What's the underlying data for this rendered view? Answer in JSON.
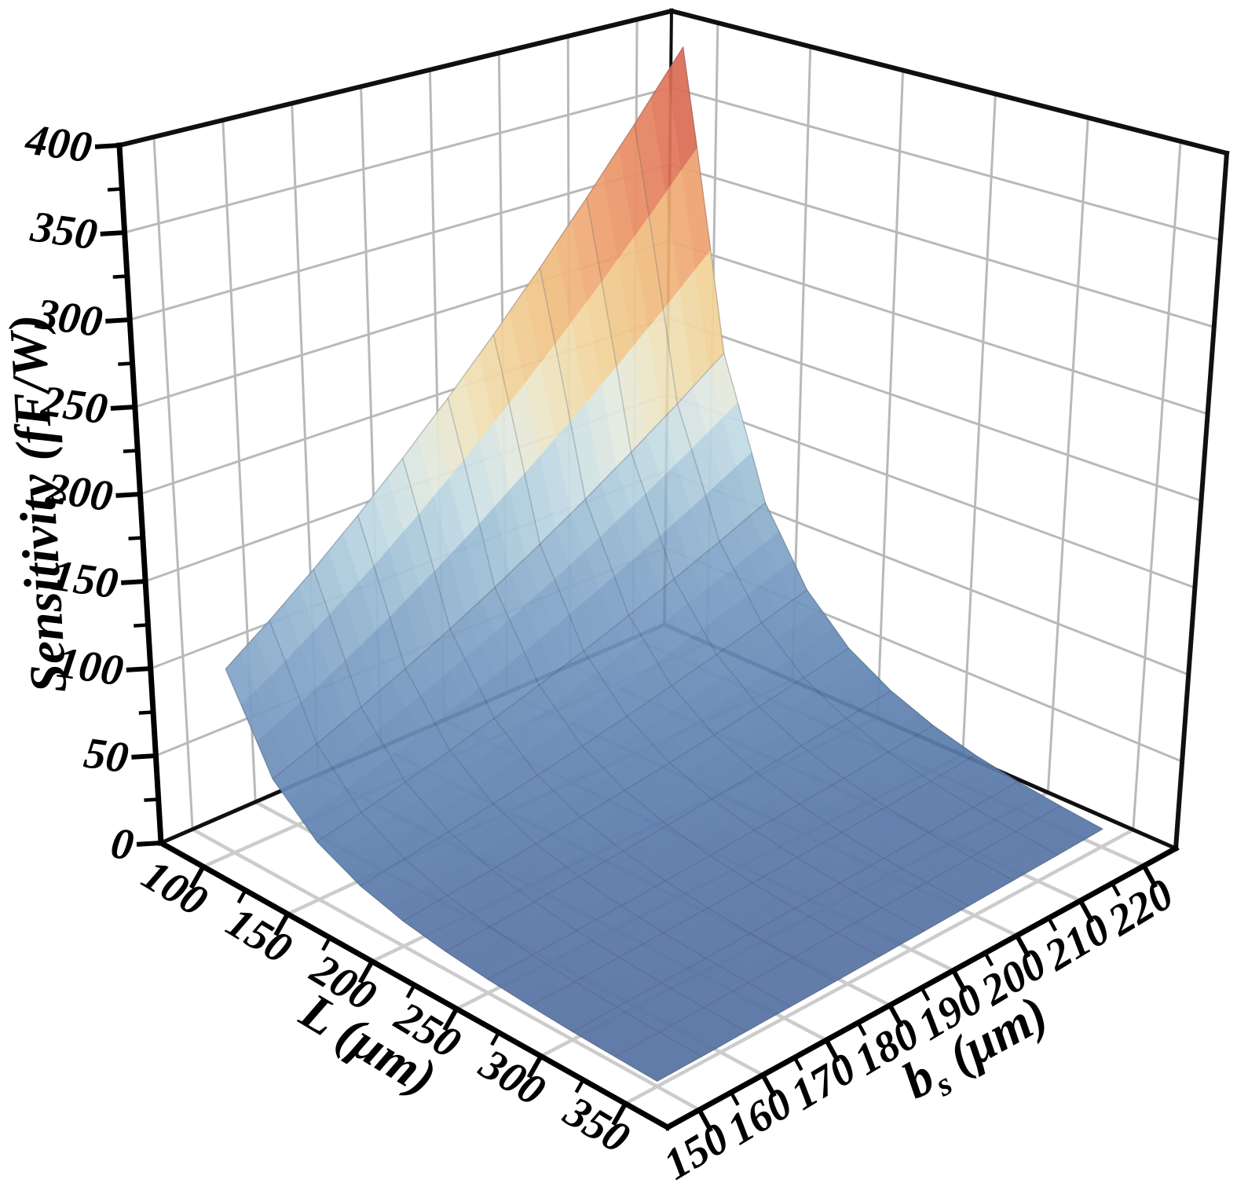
{
  "figure": {
    "background": "#ffffff",
    "axis_color": "#000000",
    "wall_grid_color": "#b9b9b9",
    "floor_grid_color": "#cccccc"
  },
  "chart_data": {
    "type": "surface",
    "title": "",
    "xlabel": "L (μm)",
    "ylabel": "bₛ (μm)",
    "ylabel_parts": {
      "base": "b",
      "sub": "s",
      "rest": " (μm)"
    },
    "zlabel": "Sensitivity (fF/W)",
    "xlim": [
      75,
      375
    ],
    "ylim": [
      145,
      225
    ],
    "zlim": [
      0,
      400
    ],
    "x_ticks": [
      100,
      150,
      200,
      250,
      300,
      350
    ],
    "x_minor_ticks": [
      125,
      175,
      225,
      275,
      325
    ],
    "y_ticks": [
      150,
      160,
      170,
      180,
      190,
      200,
      210,
      220
    ],
    "y_minor_ticks": [
      155,
      165,
      175,
      185,
      195,
      205,
      215
    ],
    "z_ticks": [
      0,
      50,
      100,
      150,
      200,
      250,
      300,
      350,
      400
    ],
    "z_minor_ticks": [
      25,
      75,
      125,
      175,
      225,
      275,
      325,
      375
    ],
    "grid": true,
    "legend": false,
    "view": "3d-perspective, viewed from front corner (L max, bs min)",
    "surface": {
      "units": "fF/W",
      "L_values": [
        100,
        125,
        150,
        175,
        200,
        225,
        250,
        275,
        300,
        325,
        350
      ],
      "bs_values": [
        150,
        157,
        164,
        171,
        178,
        185,
        192,
        199,
        206,
        213,
        220
      ],
      "sensitivity": [
        [
          105.2,
          123.0,
          142.8,
          164.7,
          189.0,
          215.6,
          244.8,
          276.7,
          311.5,
          349.2,
          390.0
        ],
        [
          55.1,
          64.4,
          74.8,
          86.3,
          99.0,
          112.9,
          128.2,
          144.9,
          163.1,
          182.8,
          204.2
        ],
        [
          32.5,
          37.9,
          44.0,
          50.8,
          58.3,
          66.5,
          75.5,
          85.4,
          96.1,
          107.7,
          120.3
        ],
        [
          20.7,
          24.3,
          28.2,
          32.5,
          37.3,
          42.5,
          48.3,
          54.6,
          61.4,
          68.8,
          76.9
        ],
        [
          14.0,
          16.4,
          19.0,
          21.9,
          25.2,
          28.7,
          32.6,
          36.8,
          41.4,
          46.5,
          51.9
        ],
        [
          10.0,
          11.7,
          13.6,
          15.7,
          18.0,
          20.5,
          23.3,
          26.3,
          29.6,
          33.2,
          37.1
        ],
        [
          7.4,
          8.6,
          10.0,
          11.5,
          13.2,
          15.1,
          17.1,
          19.4,
          21.8,
          24.4,
          27.3
        ],
        [
          5.6,
          6.5,
          7.6,
          8.7,
          10.0,
          11.4,
          13.0,
          14.7,
          16.5,
          18.5,
          20.7
        ],
        [
          4.3,
          5.1,
          5.9,
          6.8,
          7.8,
          8.9,
          10.1,
          11.4,
          12.9,
          14.4,
          16.1
        ],
        [
          3.5,
          4.0,
          4.7,
          5.4,
          6.2,
          7.1,
          8.0,
          9.1,
          10.2,
          11.5,
          12.8
        ],
        [
          2.8,
          3.2,
          3.8,
          4.4,
          5.0,
          5.7,
          6.5,
          7.3,
          8.2,
          9.2,
          10.3
        ]
      ]
    },
    "colormap": [
      [
        0.0,
        "#5671a1"
      ],
      [
        0.07,
        "#5e80af"
      ],
      [
        0.16,
        "#6d90bb"
      ],
      [
        0.25,
        "#82a5c8"
      ],
      [
        0.33,
        "#a0c1d7"
      ],
      [
        0.4,
        "#c4dce5"
      ],
      [
        0.46,
        "#e3eae0"
      ],
      [
        0.51,
        "#efe5c0"
      ],
      [
        0.57,
        "#f2d49b"
      ],
      [
        0.64,
        "#f1c184"
      ],
      [
        0.72,
        "#efa572"
      ],
      [
        0.8,
        "#e88a63"
      ],
      [
        0.89,
        "#da6a55"
      ],
      [
        0.96,
        "#c65149"
      ],
      [
        1.0,
        "#c05250"
      ]
    ]
  }
}
